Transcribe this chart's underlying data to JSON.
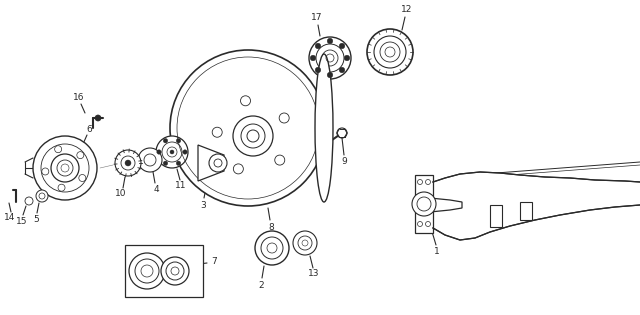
{
  "bg_color": "#ffffff",
  "line_color": "#2a2a2a",
  "fig_width": 6.4,
  "fig_height": 3.15,
  "dpi": 100
}
